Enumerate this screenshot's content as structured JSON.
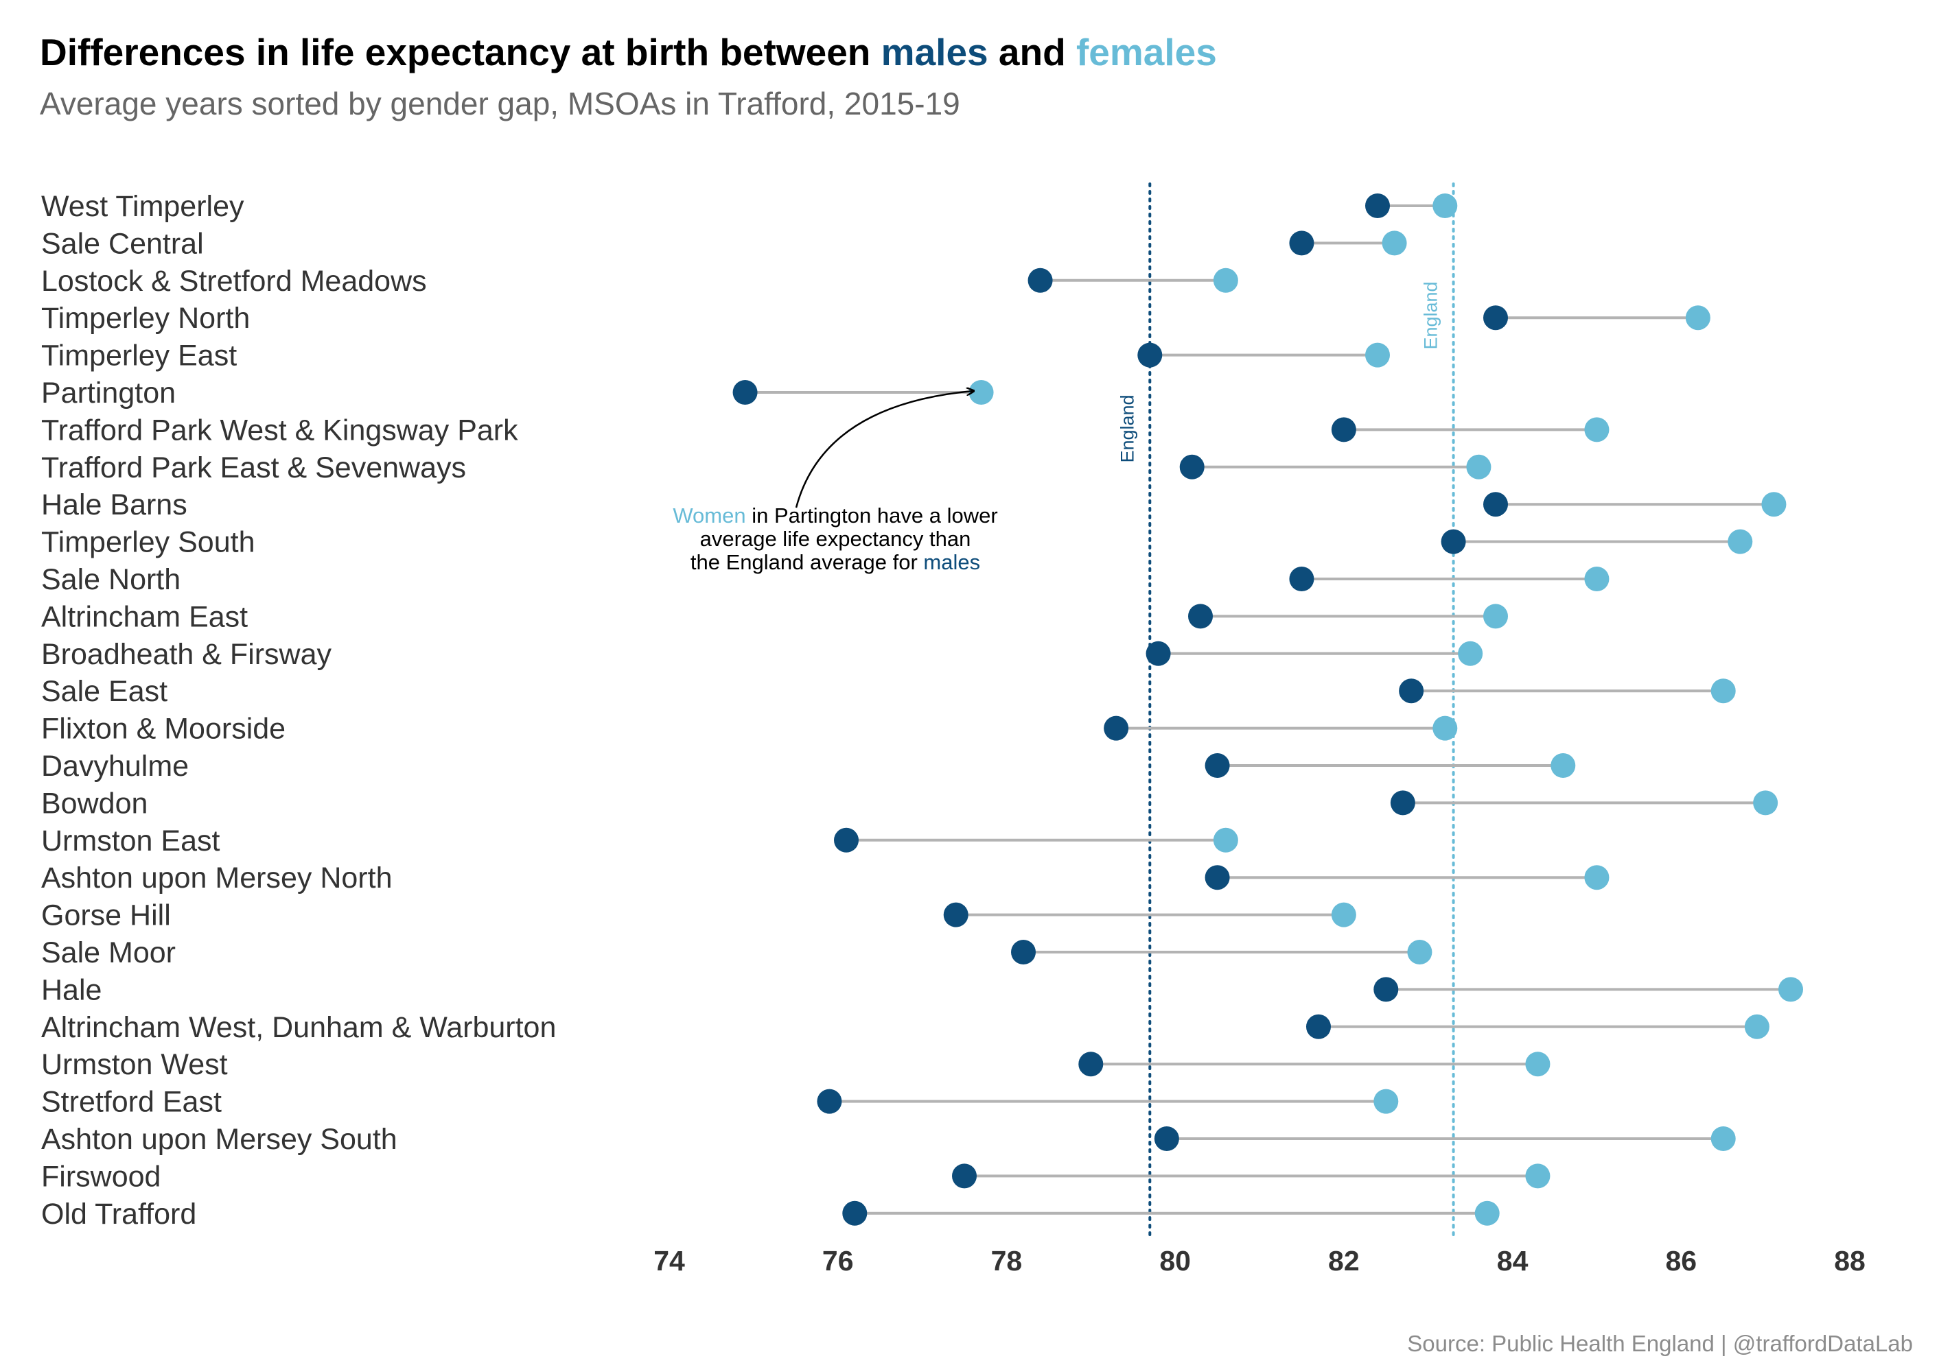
{
  "title": {
    "prefix": "Differences in life expectancy at birth between ",
    "males": "males",
    "and": " and ",
    "females": "females"
  },
  "subtitle": "Average years sorted by gender gap, MSOAs in Trafford, 2015-19",
  "caption": "Source: Public Health England | @traffordDataLab",
  "colors": {
    "males": "#0d4c7a",
    "females": "#67bbd7",
    "connector": "#b3b3b3"
  },
  "chart_data": {
    "type": "scatter",
    "subtype": "dumbbell",
    "xlim": [
      74,
      88
    ],
    "x_ticks": [
      74,
      76,
      78,
      80,
      82,
      84,
      86,
      88
    ],
    "grid": false,
    "legend": "none (colours explained in title)",
    "series": [
      {
        "name": "males",
        "color": "#0d4c7a"
      },
      {
        "name": "females",
        "color": "#67bbd7"
      }
    ],
    "categories": [
      "West Timperley",
      "Sale Central",
      "Lostock & Stretford Meadows",
      "Timperley North",
      "Timperley East",
      "Partington",
      "Trafford Park West & Kingsway Park",
      "Trafford Park East & Sevenways",
      "Hale Barns",
      "Timperley South",
      "Sale North",
      "Altrincham East",
      "Broadheath & Firsway",
      "Sale East",
      "Flixton & Moorside",
      "Davyhulme",
      "Bowdon",
      "Urmston East",
      "Ashton upon Mersey North",
      "Gorse Hill",
      "Sale Moor",
      "Hale",
      "Altrincham West, Dunham & Warburton",
      "Urmston West",
      "Stretford East",
      "Ashton upon Mersey South",
      "Firswood",
      "Old Trafford"
    ],
    "male_values": [
      82.4,
      81.5,
      78.4,
      83.8,
      79.7,
      74.9,
      82.0,
      80.2,
      83.8,
      83.3,
      81.5,
      80.3,
      79.8,
      82.8,
      79.3,
      80.5,
      82.7,
      76.1,
      80.5,
      77.4,
      78.2,
      82.5,
      81.7,
      79.0,
      75.9,
      79.9,
      77.5,
      76.2
    ],
    "female_values": [
      83.2,
      82.6,
      80.6,
      86.2,
      82.4,
      77.7,
      85.0,
      83.6,
      87.1,
      86.7,
      85.0,
      83.8,
      83.5,
      86.5,
      83.2,
      84.6,
      87.0,
      80.6,
      85.0,
      82.0,
      82.9,
      87.3,
      86.9,
      84.3,
      82.5,
      86.5,
      84.3,
      83.7
    ],
    "reference_lines": [
      {
        "label": "England",
        "series": "males",
        "value": 79.7
      },
      {
        "label": "England",
        "series": "females",
        "value": 83.3
      }
    ],
    "annotation": {
      "target": "Partington",
      "line1_highlight": "Women",
      "line1_rest": " in Partington have a lower",
      "line2": "average life expectancy than",
      "line3_prefix": "the England average for ",
      "line3_highlight": "males"
    }
  }
}
